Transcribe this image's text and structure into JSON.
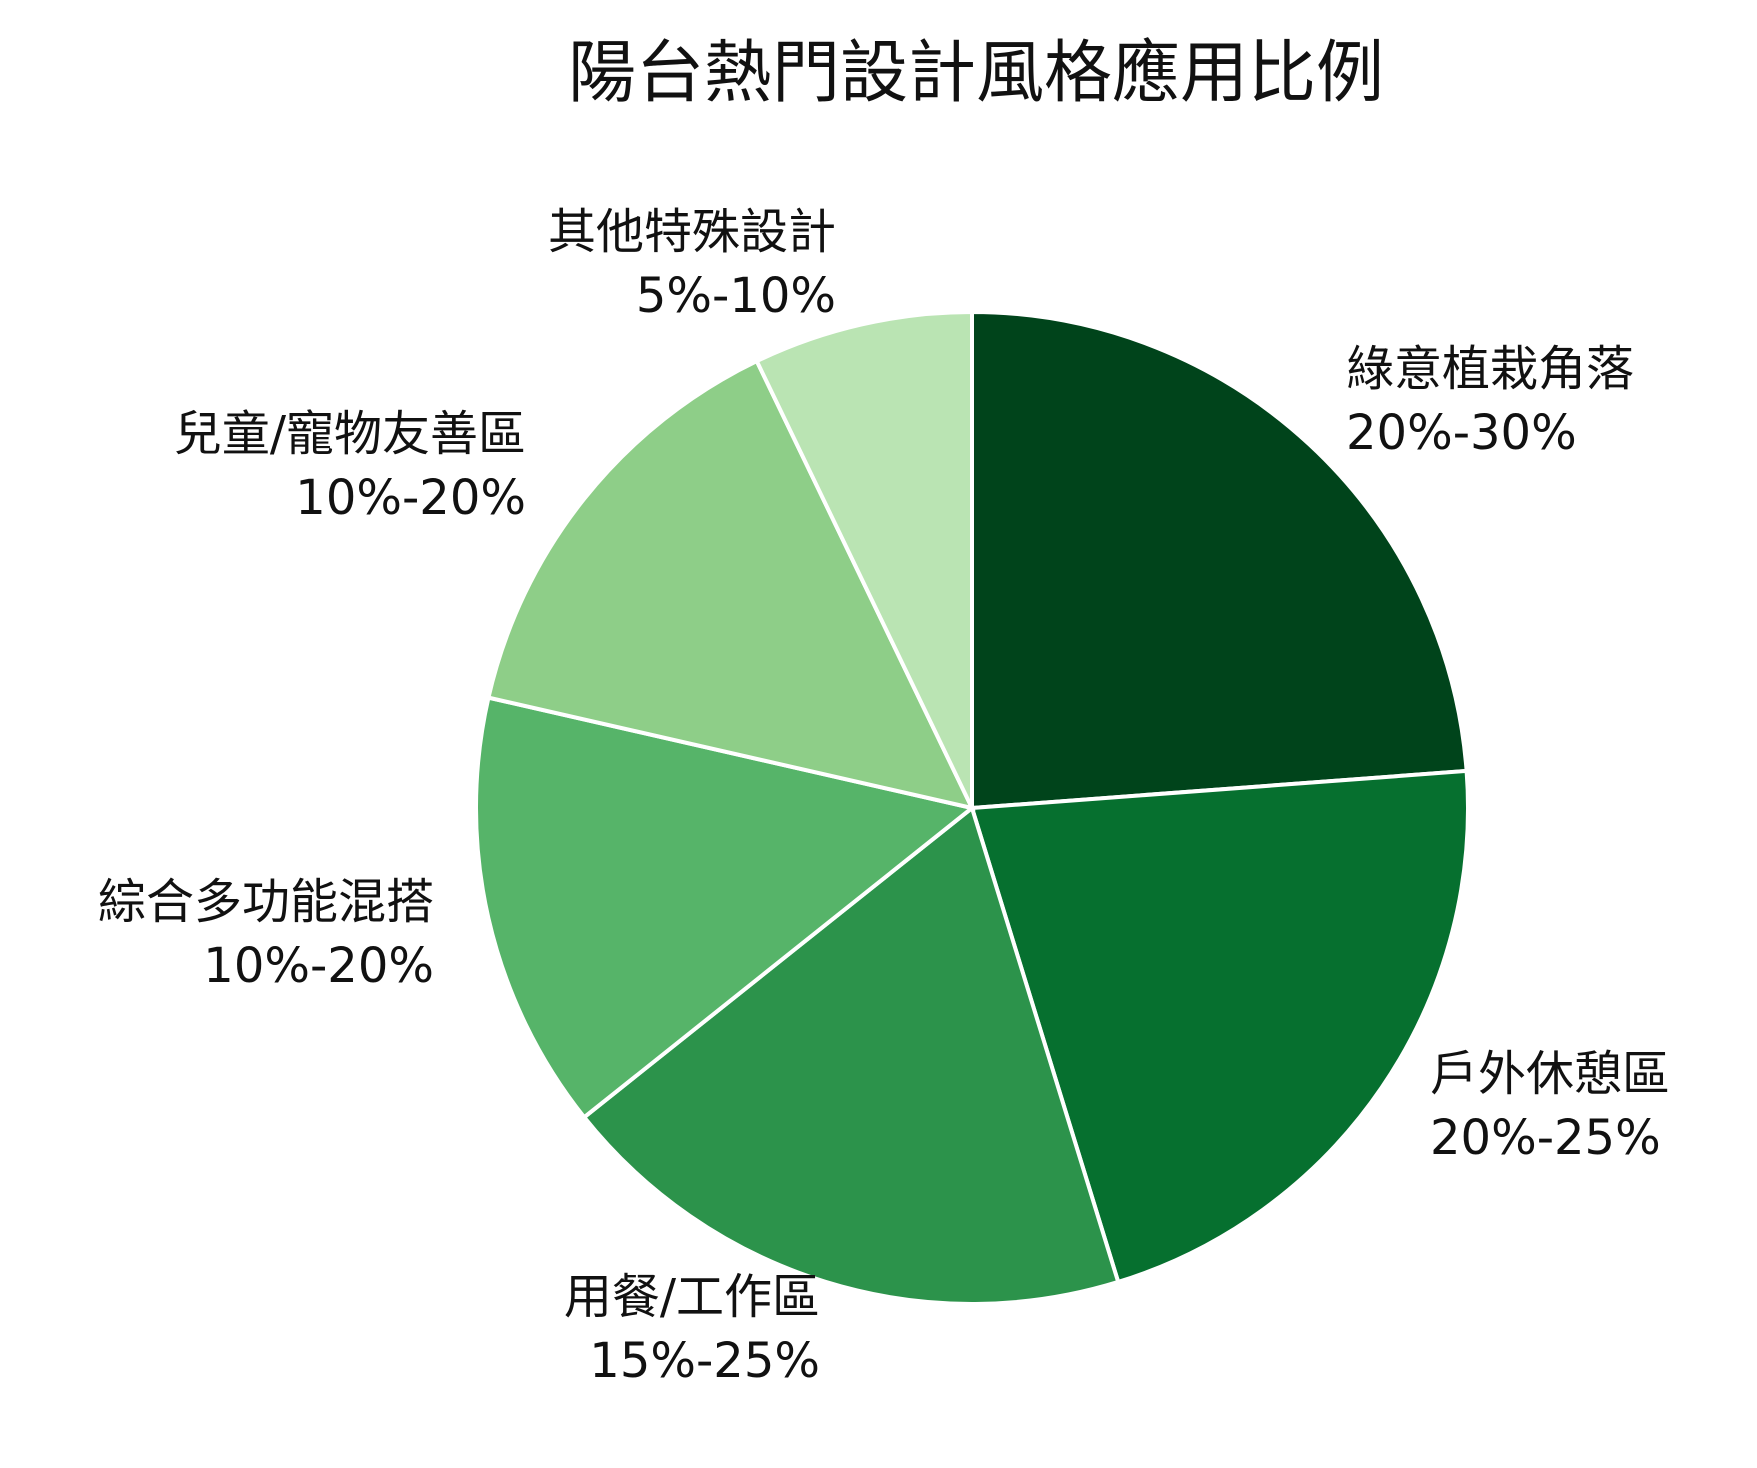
{
  "chart_data": {
    "type": "pie",
    "title": "陽台熱門設計風格應用比例",
    "slices": [
      {
        "name": "綠意植栽角落",
        "range_label": "20%-30%",
        "value": 25,
        "color": "#00441b"
      },
      {
        "name": "戶外休憩區",
        "range_label": "20%-25%",
        "value": 22.5,
        "color": "#06702f"
      },
      {
        "name": "用餐/工作區",
        "range_label": "15%-25%",
        "value": 20,
        "color": "#2c934b"
      },
      {
        "name": "綜合多功能混搭",
        "range_label": "10%-20%",
        "value": 15,
        "color": "#56b469"
      },
      {
        "name": "兒童/寵物友善區",
        "range_label": "10%-20%",
        "value": 15,
        "color": "#8ece88"
      },
      {
        "name": "其他特殊設計",
        "range_label": "5%-10%",
        "value": 7.5,
        "color": "#bae4b3"
      }
    ],
    "start_angle": "top",
    "direction": "clockwise",
    "legend": "none"
  }
}
